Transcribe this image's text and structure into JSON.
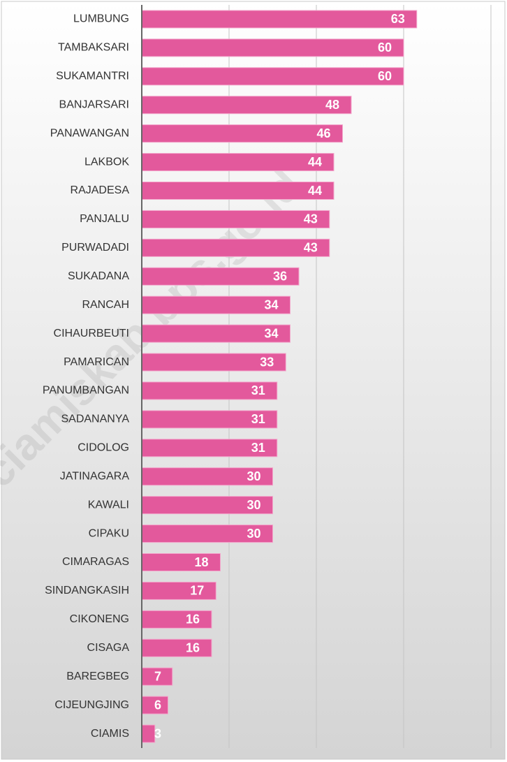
{
  "chart_data": {
    "type": "barh",
    "categories": [
      "LUMBUNG",
      "TAMBAKSARI",
      "SUKAMANTRI",
      "BANJARSARI",
      "PANAWANGAN",
      "LAKBOK",
      "RAJADESA",
      "PANJALU",
      "PURWADADI",
      "SUKADANA",
      "RANCAH",
      "CIHAURBEUTI",
      "PAMARICAN",
      "PANUMBANGAN",
      "SADANANYA",
      "CIDOLOG",
      "JATINAGARA",
      "KAWALI",
      "CIPAKU",
      "CIMARAGAS",
      "SINDANGKASIH",
      "CIKONENG",
      "CISAGA",
      "BAREGBEG",
      "CIJEUNGJING",
      "CIAMIS"
    ],
    "values": [
      63,
      60,
      60,
      48,
      46,
      44,
      44,
      43,
      43,
      36,
      34,
      34,
      33,
      31,
      31,
      31,
      30,
      30,
      30,
      18,
      17,
      16,
      16,
      7,
      6,
      3
    ],
    "color": "#e3599c",
    "xlim": [
      0,
      80
    ],
    "xticks": [
      0,
      20,
      40,
      60,
      80
    ],
    "grid": true,
    "watermark": "ps://ciamiskab.bps.go.id"
  }
}
